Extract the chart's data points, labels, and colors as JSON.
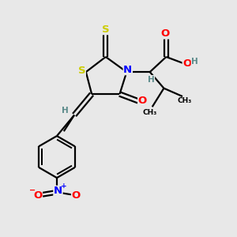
{
  "bg_color": "#e8e8e8",
  "atom_colors": {
    "C": "#000000",
    "H": "#5a8a8a",
    "N": "#0000ff",
    "O": "#ff0000",
    "S": "#cccc00"
  },
  "bond_color": "#000000",
  "figsize": [
    3.0,
    3.0
  ],
  "dpi": 100,
  "lw": 1.6
}
